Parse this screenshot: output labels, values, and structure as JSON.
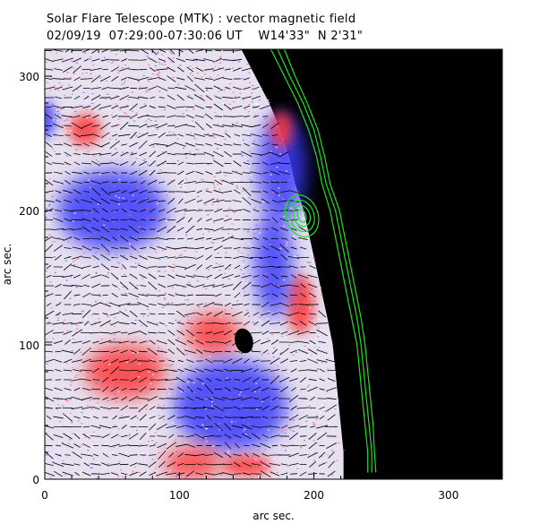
{
  "header": {
    "title": "Solar Flare Telescope (MTK) : vector magnetic field",
    "subtitle": "02/09/19  07:29:00-07:30:06 UT    W14'33\"  N 2'31\""
  },
  "chart_data": {
    "type": "heatmap",
    "title": "Solar Flare Telescope (MTK) : vector magnetic field",
    "xlabel": "arc sec.",
    "ylabel": "arc sec.",
    "xlim": [
      0,
      340
    ],
    "ylim": [
      0,
      320
    ],
    "x_ticks": [
      0,
      100,
      200,
      300
    ],
    "y_ticks": [
      0,
      100,
      200,
      300
    ],
    "x_tick_labels": [
      "0",
      "100",
      "200",
      "300"
    ],
    "y_tick_labels": [
      "0",
      "100",
      "200",
      "300"
    ],
    "colors": {
      "positive_polarity": "#ff3a3a",
      "negative_polarity": "#3a3aff",
      "background": "#e6e0f0",
      "sky": "#000000",
      "contour": "#19e619",
      "vector": "#000000"
    },
    "limb_contours": [
      [
        [
          168,
          320
        ],
        [
          178,
          300
        ],
        [
          188,
          280
        ],
        [
          196,
          260
        ],
        [
          202,
          240
        ],
        [
          206,
          220
        ],
        [
          212,
          200
        ],
        [
          216,
          180
        ],
        [
          220,
          160
        ],
        [
          224,
          140
        ],
        [
          228,
          120
        ],
        [
          232,
          100
        ],
        [
          234,
          80
        ],
        [
          236,
          60
        ],
        [
          238,
          40
        ],
        [
          240,
          20
        ],
        [
          240,
          5
        ]
      ],
      [
        [
          173,
          320
        ],
        [
          182,
          300
        ],
        [
          192,
          280
        ],
        [
          200,
          260
        ],
        [
          205,
          240
        ],
        [
          209,
          220
        ],
        [
          216,
          200
        ],
        [
          220,
          180
        ],
        [
          224,
          160
        ],
        [
          228,
          140
        ],
        [
          232,
          120
        ],
        [
          235,
          100
        ],
        [
          237,
          80
        ],
        [
          239,
          60
        ],
        [
          241,
          40
        ],
        [
          243,
          20
        ],
        [
          243,
          5
        ]
      ],
      [
        [
          178,
          320
        ],
        [
          186,
          300
        ],
        [
          195,
          280
        ],
        [
          203,
          260
        ],
        [
          208,
          240
        ],
        [
          212,
          220
        ],
        [
          219,
          200
        ],
        [
          223,
          180
        ],
        [
          227,
          160
        ],
        [
          231,
          140
        ],
        [
          235,
          120
        ],
        [
          238,
          100
        ],
        [
          240,
          80
        ],
        [
          242,
          60
        ],
        [
          244,
          40
        ],
        [
          245,
          20
        ],
        [
          246,
          5
        ]
      ]
    ],
    "plage_contours": {
      "center": [
        191,
        196
      ],
      "radii": [
        [
          12,
          16
        ],
        [
          9,
          12
        ],
        [
          6,
          8
        ],
        [
          3,
          5
        ]
      ]
    }
  }
}
